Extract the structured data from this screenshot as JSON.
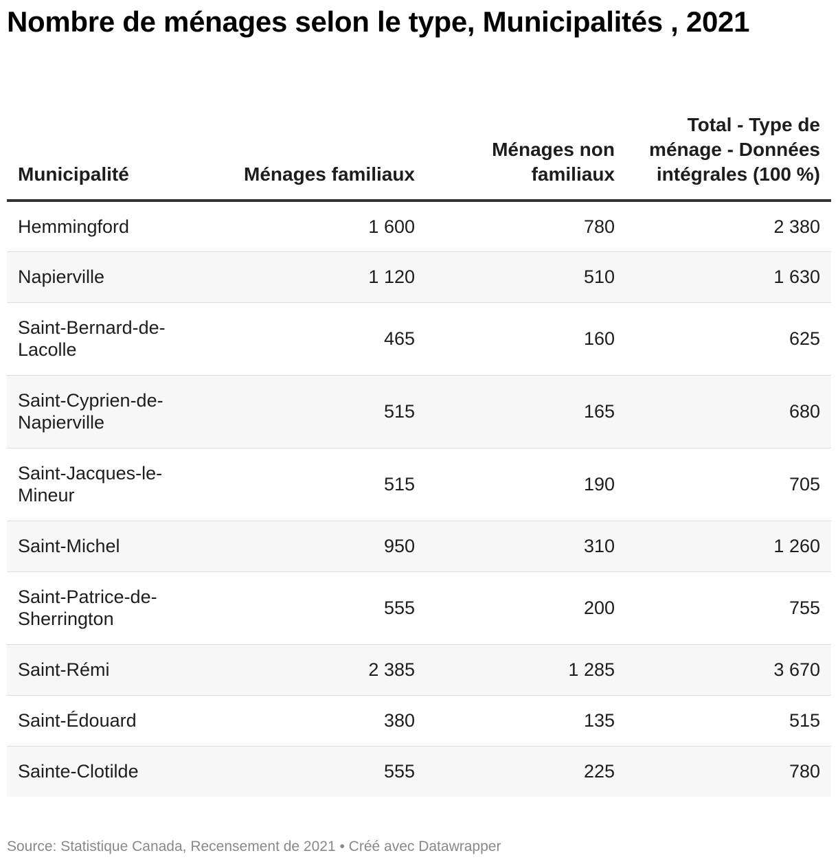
{
  "title": "Nombre de ménages selon le type, Municipalités , 2021",
  "footer": {
    "source": "Source: Statistique Canada, Recensement de 2021 • Créé avec Datawrapper"
  },
  "chart_data": {
    "type": "table",
    "title": "Nombre de ménages selon le type, Municipalités , 2021",
    "columns": [
      "Municipalité",
      "Ménages familiaux",
      "Ménages non familiaux",
      "Total - Type de ménage - Données intégrales (100 %)"
    ],
    "rows": [
      [
        "Hemmingford",
        "1 600",
        "780",
        "2 380"
      ],
      [
        "Napierville",
        "1 120",
        "510",
        "1 630"
      ],
      [
        "Saint-Bernard-de-Lacolle",
        "465",
        "160",
        "625"
      ],
      [
        "Saint-Cyprien-de-Napierville",
        "515",
        "165",
        "680"
      ],
      [
        "Saint-Jacques-le-Mineur",
        "515",
        "190",
        "705"
      ],
      [
        "Saint-Michel",
        "950",
        "310",
        "1 260"
      ],
      [
        "Saint-Patrice-de-Sherrington",
        "555",
        "200",
        "755"
      ],
      [
        "Saint-Rémi",
        "2 385",
        "1 285",
        "3 670"
      ],
      [
        "Saint-Édouard",
        "380",
        "135",
        "515"
      ],
      [
        "Sainte-Clotilde",
        "555",
        "225",
        "780"
      ]
    ]
  }
}
